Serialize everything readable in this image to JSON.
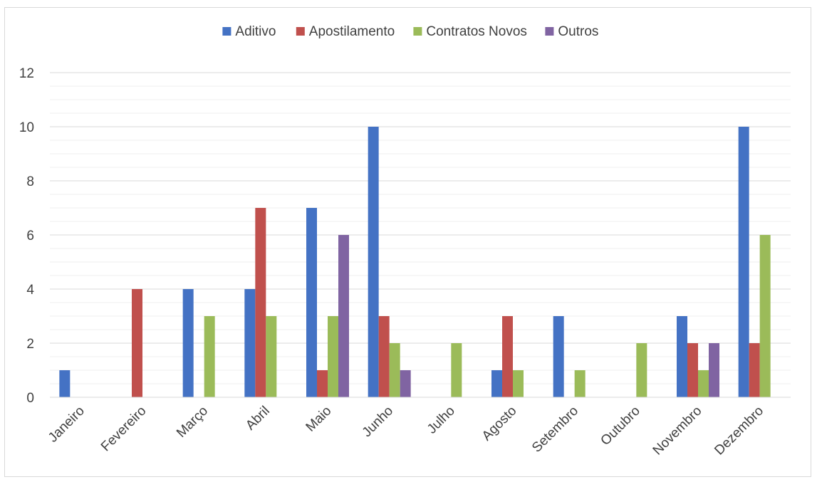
{
  "chart_data": {
    "type": "bar",
    "categories": [
      "Janeiro",
      "Fevereiro",
      "Março",
      "Abril",
      "Maio",
      "Junho",
      "Julho",
      "Agosto",
      "Setembro",
      "Outubro",
      "Novembro",
      "Dezembro"
    ],
    "series": [
      {
        "name": "Aditivo",
        "color": "#4472c4",
        "values": [
          1,
          0,
          4,
          4,
          7,
          10,
          0,
          1,
          3,
          0,
          3,
          10
        ]
      },
      {
        "name": "Apostilamento",
        "color": "#c0504d",
        "values": [
          0,
          4,
          0,
          7,
          1,
          3,
          0,
          3,
          0,
          0,
          2,
          2
        ]
      },
      {
        "name": "Contratos Novos",
        "color": "#9bbb59",
        "values": [
          0,
          0,
          3,
          3,
          3,
          2,
          2,
          1,
          1,
          2,
          1,
          6
        ]
      },
      {
        "name": "Outros",
        "color": "#8064a2",
        "values": [
          0,
          0,
          0,
          0,
          6,
          1,
          0,
          0,
          0,
          0,
          2,
          0
        ]
      }
    ],
    "title": "",
    "xlabel": "",
    "ylabel": "",
    "ylim": [
      0,
      12
    ],
    "yticks": [
      0,
      2,
      4,
      6,
      8,
      10,
      12
    ],
    "grid": "major-and-minor",
    "legend_position": "top"
  }
}
